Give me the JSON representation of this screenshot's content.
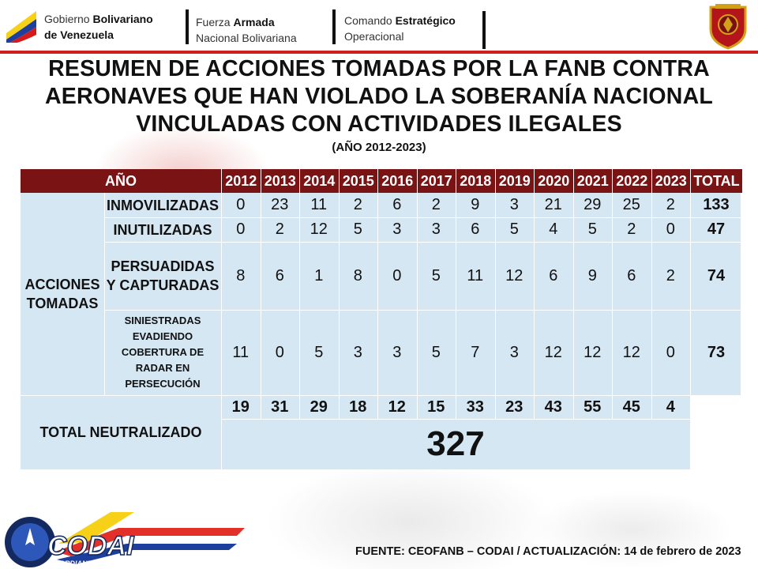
{
  "header": {
    "org1_line1_a": "Gobierno ",
    "org1_line1_b": "Bolivariano",
    "org1_line2": "de Venezuela",
    "org2_line1_a": "Fuerza ",
    "org2_line1_b": "Armada",
    "org2_line2": "Nacional Bolivariana",
    "org3_line1_a": "Comando ",
    "org3_line1_b": "Estratégico",
    "org3_line2": "Operacional"
  },
  "title": {
    "line1": "RESUMEN DE ACCIONES TOMADAS POR LA FANB CONTRA",
    "line2": "AERONAVES QUE HAN VIOLADO LA SOBERANÍA NACIONAL",
    "line3": "VINCULADAS CON ACTIVIDADES ILEGALES",
    "subtitle": "(AÑO 2012-2023)"
  },
  "table": {
    "year_header": "AÑO",
    "total_header": "TOTAL",
    "group_label_line1": "ACCIONES",
    "group_label_line2": "TOMADAS",
    "years": [
      "2012",
      "2013",
      "2014",
      "2015",
      "2016",
      "2017",
      "2018",
      "2019",
      "2020",
      "2021",
      "2022",
      "2023"
    ],
    "rows": [
      {
        "label_lines": [
          "INMOVILIZADAS"
        ],
        "values": [
          "0",
          "23",
          "11",
          "2",
          "6",
          "2",
          "9",
          "3",
          "21",
          "29",
          "25",
          "2"
        ],
        "total": "133"
      },
      {
        "label_lines": [
          "INUTILIZADAS"
        ],
        "values": [
          "0",
          "2",
          "12",
          "5",
          "3",
          "3",
          "6",
          "5",
          "4",
          "5",
          "2",
          "0"
        ],
        "total": "47"
      },
      {
        "label_lines": [
          "PERSUADIDAS",
          "Y CAPTURADAS"
        ],
        "values": [
          "8",
          "6",
          "1",
          "8",
          "0",
          "5",
          "11",
          "12",
          "6",
          "9",
          "6",
          "2"
        ],
        "total": "74"
      },
      {
        "label_lines": [
          "SINIESTRADAS",
          "EVADIENDO",
          "COBERTURA DE",
          "RADAR EN",
          "PERSECUCIÓN"
        ],
        "values": [
          "11",
          "0",
          "5",
          "3",
          "3",
          "5",
          "7",
          "3",
          "12",
          "12",
          "12",
          "0"
        ],
        "total": "73"
      }
    ],
    "total_label": "TOTAL NEUTRALIZADO",
    "year_totals": [
      "19",
      "31",
      "29",
      "18",
      "12",
      "15",
      "33",
      "23",
      "43",
      "55",
      "45",
      "4"
    ],
    "grand_total": "327"
  },
  "footer": {
    "source_text": "FUENTE: CEOFANB – CODAI / ACTUALIZACIÓN:  14 de febrero de 2023",
    "logo_text": "CODAI",
    "logo_tagline": "GUARDIANES PARA LA DEFENSA"
  },
  "colors": {
    "header_red": "#7a1414",
    "cell_blue": "#d6e7f4",
    "accent_red": "#cf1f1f"
  }
}
